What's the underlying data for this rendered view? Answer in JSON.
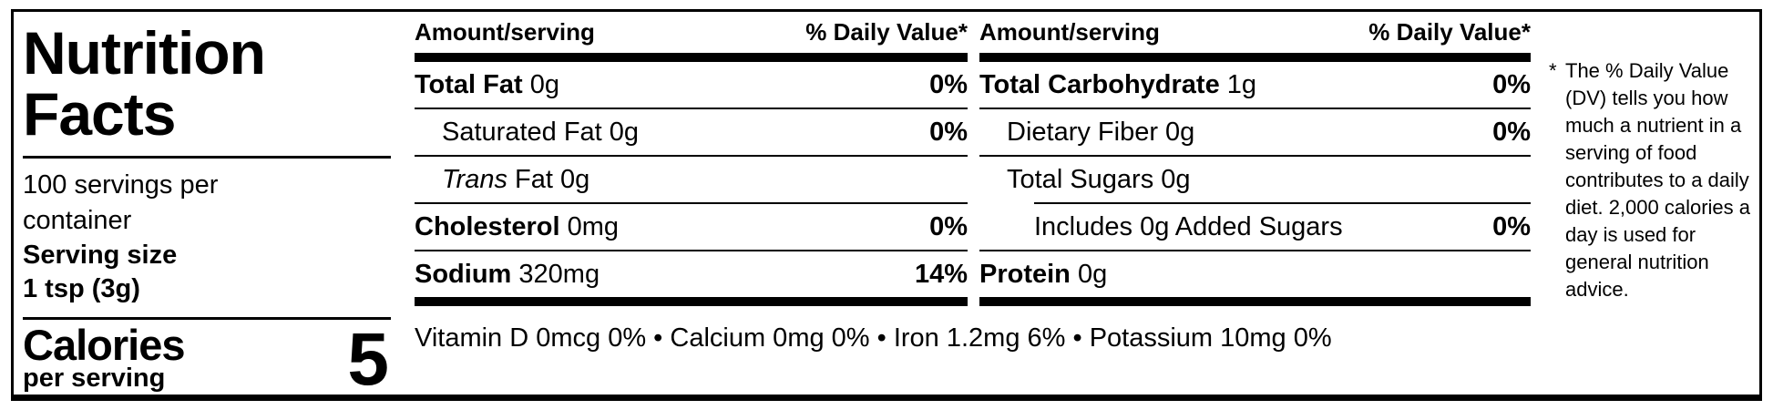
{
  "label": {
    "title": "Nutrition Facts",
    "servings_per_container": "100 servings per container",
    "serving_size_label": "Serving size",
    "serving_size_value": "1 tsp (3g)",
    "calories_label": "Calories",
    "calories_sublabel": "per serving",
    "calories_value": "5"
  },
  "column_header": {
    "amount": "Amount/serving",
    "daily_value": "% Daily Value*"
  },
  "columns": [
    {
      "rows": [
        {
          "bold": "Total Fat",
          "rest": " 0g",
          "dv": "0%"
        },
        {
          "rest": "Saturated Fat 0g",
          "dv": "0%"
        },
        {
          "italic": "Trans",
          "rest": " Fat 0g",
          "dv": ""
        },
        {
          "bold": "Cholesterol",
          "rest": " 0mg",
          "dv": "0%"
        },
        {
          "bold": "Sodium",
          "rest": " 320mg",
          "dv": "14%"
        }
      ]
    },
    {
      "rows": [
        {
          "bold": "Total Carbohydrate",
          "rest": " 1g",
          "dv": "0%"
        },
        {
          "rest": "Dietary Fiber 0g",
          "dv": "0%"
        },
        {
          "rest": "Total Sugars 0g",
          "dv": ""
        },
        {
          "rest": "Includes 0g Added Sugars",
          "dv": "0%"
        },
        {
          "bold": "Protein",
          "rest": " 0g",
          "dv": ""
        }
      ]
    }
  ],
  "micronutrients": "Vitamin D 0mcg 0% • Calcium 0mg 0% • Iron 1.2mg 6% • Potassium 10mg 0%",
  "footnote": {
    "marker": "*",
    "text": "The % Daily Value (DV) tells you how much a nutrient in a serving of food contributes to a daily diet. 2,000 calories a day is used for general nutrition advice."
  },
  "colors": {
    "ink": "#000000",
    "background": "#ffffff"
  }
}
